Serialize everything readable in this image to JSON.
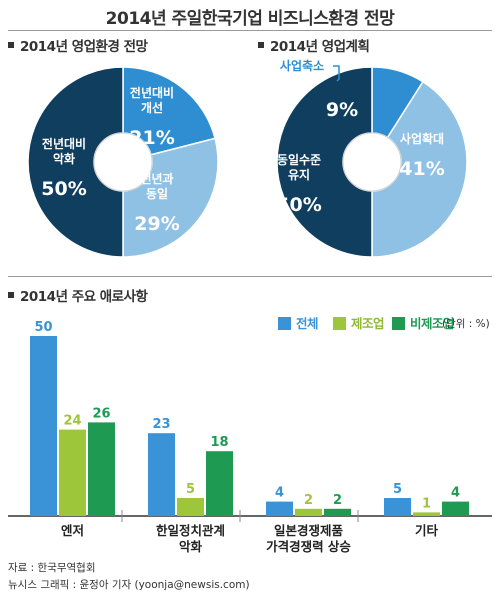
{
  "title": "2014년 주일한국기업 비즈니스환경 전망",
  "section1_title": "2014년 영업환경 전망",
  "section2_title": "2014년 영업계획",
  "section3_title": "2014년 주요 애로사항",
  "unit_note": "(단위 : %)",
  "footer": {
    "source": "자료 : 한국무역협회",
    "credit": "뉴시스 그래픽 : 윤정아 기자 (yoonja@newsis.com)"
  },
  "colors": {
    "pie_dark": "#0f3e5e",
    "pie_mid": "#2e8ed1",
    "pie_light": "#8fc1e5",
    "bar_total": "#3a93d6",
    "bar_manufacturing": "#9dc63b",
    "bar_non_manufacturing": "#1f9a53"
  },
  "chart_data": [
    {
      "type": "pie",
      "title": "2014년 영업환경 전망",
      "slices": [
        {
          "label": [
            "전년대비",
            "개선"
          ],
          "value": 21,
          "value_label": "21%",
          "color": "#2e8ed1"
        },
        {
          "label": [
            "전년과",
            "동일"
          ],
          "value": 29,
          "value_label": "29%",
          "color": "#8fc1e5"
        },
        {
          "label": [
            "전년대비",
            "악화"
          ],
          "value": 50,
          "value_label": "50%",
          "color": "#0f3e5e"
        }
      ]
    },
    {
      "type": "pie",
      "title": "2014년 영업계획",
      "slices": [
        {
          "label": [
            "사업축소"
          ],
          "value": 9,
          "value_label": "9%",
          "color": "#2e8ed1"
        },
        {
          "label": [
            "사업확대"
          ],
          "value": 41,
          "value_label": "41%",
          "color": "#8fc1e5"
        },
        {
          "label": [
            "동일수준",
            "유지"
          ],
          "value": 50,
          "value_label": "50%",
          "color": "#0f3e5e"
        }
      ]
    },
    {
      "type": "bar",
      "title": "2014년 주요 애로사항",
      "categories": [
        [
          "엔저"
        ],
        [
          "한일정치관계",
          "악화"
        ],
        [
          "일본경쟁제품",
          "가격경쟁력 상승"
        ],
        [
          "기타"
        ]
      ],
      "series": [
        {
          "name": "전체",
          "values": [
            50,
            23,
            4,
            5
          ],
          "color": "#3a93d6"
        },
        {
          "name": "제조업",
          "values": [
            24,
            5,
            2,
            1
          ],
          "color": "#9dc63b"
        },
        {
          "name": "비제조업",
          "values": [
            26,
            18,
            2,
            4
          ],
          "color": "#1f9a53"
        }
      ],
      "ylim": [
        0,
        50
      ],
      "unit": "%",
      "grid": false,
      "legend": "top-right"
    }
  ]
}
